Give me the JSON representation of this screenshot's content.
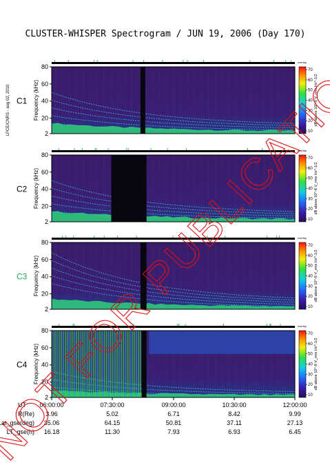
{
  "page": {
    "title": "CLUSTER-WHISPER Spectrogram / JUN 19, 2006 (Day 170)",
    "side_label": "LPCE/CNRS - aug 02, 2010",
    "watermark": "NOT FOR PUBLICATION",
    "panel_tag": "overlay"
  },
  "colors": {
    "background_plot": "#3a1d66",
    "c3_label": "#22aa55",
    "trace": "#3fd0e0",
    "grid": "#6a7bd0"
  },
  "chart_data": [
    {
      "type": "heatmap",
      "spacecraft": "C1",
      "label_color": "#000000",
      "ylabel": "Frequency (kHz)",
      "yticks": [
        2,
        20,
        40,
        60,
        80
      ],
      "ylim": [
        2,
        80
      ],
      "colorbar_label": "dB above 10^-8 V_rms Hz^-1/2",
      "colorbar_ticks": [
        10,
        20,
        30,
        40,
        50,
        60,
        70
      ],
      "data_gaps": [
        [
          0.365,
          0.385
        ]
      ]
    },
    {
      "type": "heatmap",
      "spacecraft": "C2",
      "label_color": "#000000",
      "ylabel": "Frequency (kHz)",
      "yticks": [
        2,
        20,
        40,
        60,
        80
      ],
      "ylim": [
        2,
        80
      ],
      "colorbar_label": "dB above 10^-8 V_rms Hz^-1/2",
      "colorbar_ticks": [
        10,
        20,
        30,
        40,
        50,
        60,
        70
      ],
      "data_gaps": [
        [
          0.245,
          0.39
        ]
      ]
    },
    {
      "type": "heatmap",
      "spacecraft": "C3",
      "label_color": "#22aa55",
      "ylabel": "Frequency (kHz)",
      "yticks": [
        2,
        20,
        40,
        60,
        80
      ],
      "ylim": [
        2,
        80
      ],
      "colorbar_label": "dB above 10^-8 V_rms Hz^-1/2",
      "colorbar_ticks": [
        10,
        20,
        30,
        40,
        50,
        60,
        70
      ],
      "data_gaps": [
        [
          0.365,
          0.39
        ]
      ]
    },
    {
      "type": "heatmap",
      "spacecraft": "C4",
      "label_color": "#000000",
      "ylabel": "Frequency (kHz)",
      "yticks": [
        2,
        20,
        40,
        60,
        80
      ],
      "ylim": [
        2,
        80
      ],
      "colorbar_label": "dB above 10^-8 V_rms Hz^-1/2",
      "colorbar_ticks": [
        10,
        20,
        30,
        40,
        50,
        60,
        70
      ],
      "data_gaps": [
        [
          0.37,
          0.39
        ]
      ]
    }
  ],
  "footer": {
    "rows": [
      {
        "label": "UT",
        "values": [
          "06:00:00",
          "07:30:00",
          "09:00:00",
          "10:30:00",
          "12:00:00"
        ]
      },
      {
        "label": "R(Re)",
        "values": [
          "3.96",
          "5.02",
          "6.71",
          "8.42",
          "9.99"
        ]
      },
      {
        "label": "Lat_gse(deg)",
        "values": [
          "35.06",
          "64.15",
          "50.81",
          "37.11",
          "27.13"
        ]
      },
      {
        "label": "LT_gse(h)",
        "values": [
          "16.18",
          "11.30",
          "7.93",
          "6.93",
          "6.45"
        ]
      }
    ]
  }
}
